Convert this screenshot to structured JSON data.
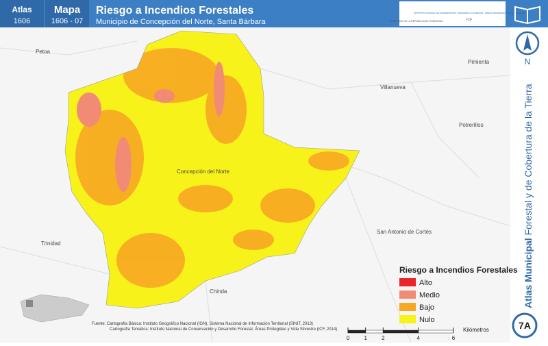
{
  "header": {
    "atlas_label": "Atlas",
    "atlas_code": "1606",
    "map_label": "Mapa",
    "map_code": "1606 - 07",
    "title": "Riesgo a Incendios Forestales",
    "subtitle": "Municipio de Concepción del Norte, Santa Bárbara",
    "logo_left": "GOBIERNO DE LA REPÚBLICA DE HONDURAS",
    "logo_right": "INSTITUTO NACIONAL DE CONSERVACIÓN Y DESARROLLO FORESTAL, ÁREAS PROTEGIDAS Y VIDA SILVESTRE",
    "logo_right_abbr": "ICF"
  },
  "places": [
    "Petoa",
    "Pimienta",
    "Villanueva",
    "Potrerillos",
    "Concepción del Norte",
    "San Antonio de Cortés",
    "Trinidad",
    "Chinda"
  ],
  "legend": {
    "title": "Riesgo a Incendios Forestales",
    "items": [
      {
        "label": "Alto",
        "color": "#e8262a"
      },
      {
        "label": "Medio",
        "color": "#f28b74"
      },
      {
        "label": "Bajo",
        "color": "#f7a823"
      },
      {
        "label": "Nulo",
        "color": "#f8f21b"
      }
    ]
  },
  "sources": [
    "Fuente: Cartografía Básica: Instituto Geográfico Nacional (IGN), Sistema Nacional de Información Territorial (SINIT, 2013)",
    "Cartografía Temática: Instituto Nacional de Conservación y Desarrollo Forestal, Áreas Protegidas y Vida Silvestre (ICF, 2014)"
  ],
  "scale": {
    "ticks": [
      0,
      1,
      2,
      4,
      6
    ],
    "unit": "Kilómetros"
  },
  "side": {
    "north": "N",
    "series_bold": "Atlas Municipal",
    "series_rest": "Forestal y de Cobertura de la Tierra",
    "sheet": "7A"
  }
}
